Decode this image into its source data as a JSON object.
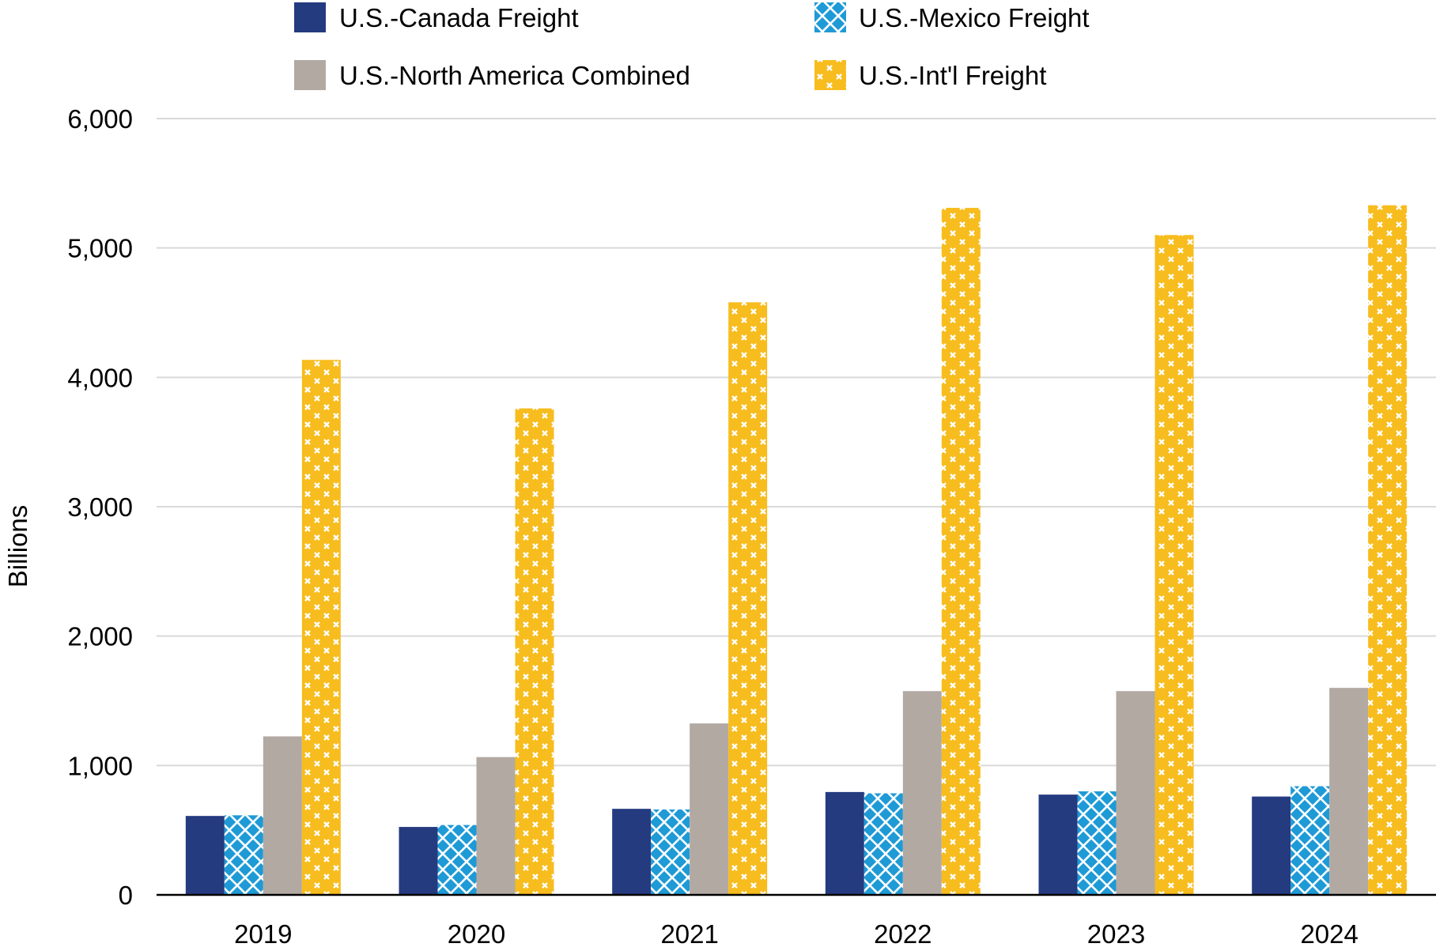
{
  "chart_data": {
    "type": "bar",
    "title": "",
    "xlabel": "",
    "ylabel": "Billions",
    "ylim": [
      0,
      6000
    ],
    "yticks": [
      0,
      1000,
      2000,
      3000,
      4000,
      5000,
      6000
    ],
    "ytick_labels": [
      "0",
      "1,000",
      "2,000",
      "3,000",
      "4,000",
      "5,000",
      "6,000"
    ],
    "grid": true,
    "legend_position": "top",
    "categories": [
      "2019",
      "2020",
      "2021",
      "2022",
      "2023",
      "2024"
    ],
    "series": [
      {
        "name": "U.S.-Canada Freight",
        "color": "#253B80",
        "pattern": "solid",
        "values": [
          610,
          525,
          665,
          795,
          775,
          760
        ]
      },
      {
        "name": "U.S.-Mexico Freight",
        "color": "#1E9AD6",
        "pattern": "diagonal-crosshatch",
        "values": [
          615,
          540,
          660,
          785,
          800,
          840
        ]
      },
      {
        "name": "U.S.-North America Combined",
        "color": "#B2A9A3",
        "pattern": "solid",
        "values": [
          1225,
          1065,
          1325,
          1575,
          1575,
          1600
        ]
      },
      {
        "name": "U.S.-Int'l Freight",
        "color": "#F7BC1E",
        "pattern": "x-marks",
        "values": [
          4135,
          3760,
          4580,
          5310,
          5100,
          5330
        ]
      }
    ]
  }
}
